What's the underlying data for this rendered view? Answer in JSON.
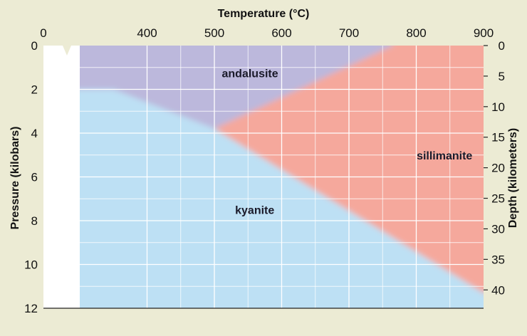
{
  "chart_data": {
    "type": "area",
    "title": "",
    "xlabel": "Temperature (°C)",
    "ylabel": "Pressure (kilobars)",
    "y2label": "Depth (kilometers)",
    "xlim": [
      300,
      900
    ],
    "ylim": [
      0,
      12
    ],
    "x_ticks": [
      {
        "label": "0"
      },
      {
        "value": 400,
        "label": "400"
      },
      {
        "value": 500,
        "label": "500"
      },
      {
        "value": 600,
        "label": "600"
      },
      {
        "value": 700,
        "label": "700"
      },
      {
        "value": 800,
        "label": "800"
      },
      {
        "value": 900,
        "label": "900"
      }
    ],
    "y_ticks": [
      {
        "value": 0,
        "label": "0"
      },
      {
        "value": 2,
        "label": "2"
      },
      {
        "value": 4,
        "label": "4"
      },
      {
        "value": 6,
        "label": "6"
      },
      {
        "value": 8,
        "label": "8"
      },
      {
        "value": 10,
        "label": "10"
      },
      {
        "value": 12,
        "label": "12"
      }
    ],
    "y2_ticks": [
      {
        "value": 0,
        "label": "0"
      },
      {
        "value": 5,
        "label": "5"
      },
      {
        "value": 10,
        "label": "10"
      },
      {
        "value": 15,
        "label": "15"
      },
      {
        "value": 20,
        "label": "20"
      },
      {
        "value": 25,
        "label": "25"
      },
      {
        "value": 30,
        "label": "30"
      },
      {
        "value": 35,
        "label": "35"
      },
      {
        "value": 40,
        "label": "40"
      }
    ],
    "y2lim": [
      0,
      43
    ],
    "x_axis_break": "0 to 350",
    "triple_point": {
      "x": 500,
      "y": 3.8
    },
    "boundaries": [
      {
        "between": [
          "andalusite",
          "kyanite"
        ],
        "points": [
          [
            350,
            2.0
          ],
          [
            500,
            3.8
          ]
        ]
      },
      {
        "between": [
          "andalusite",
          "sillimanite"
        ],
        "points": [
          [
            500,
            3.8
          ],
          [
            765,
            0
          ]
        ]
      },
      {
        "between": [
          "kyanite",
          "sillimanite"
        ],
        "points": [
          [
            500,
            3.8
          ],
          [
            900,
            11.3
          ]
        ]
      }
    ],
    "regions": [
      {
        "name": "andalusite",
        "label": "andalusite",
        "label_at": [
          553,
          1.25
        ],
        "color": "#bcb8dc"
      },
      {
        "name": "kyanite",
        "label": "kyanite",
        "label_at": [
          560,
          7.5
        ],
        "color": "#bde0f4"
      },
      {
        "name": "sillimanite",
        "label": "sillimanite",
        "label_at": [
          842,
          5.0
        ],
        "color": "#f5a89c"
      }
    ],
    "grid": true,
    "colors": {
      "background": "#ecebd4",
      "blank_strip": "#ffffff",
      "grid": "#ffffff"
    }
  }
}
